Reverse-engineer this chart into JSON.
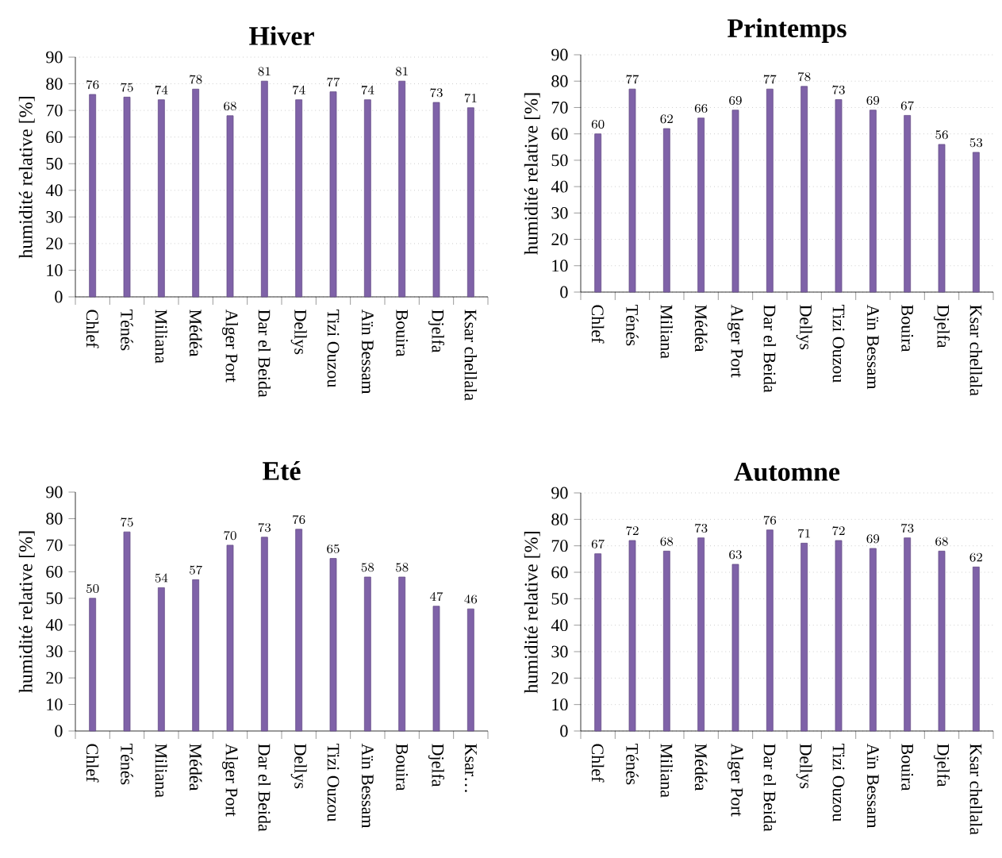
{
  "chart_data": [
    {
      "type": "bar",
      "title": "Hiver",
      "ylabel": "humidité relative [%]",
      "categories": [
        "Chlef",
        "Ténés",
        "Miliana",
        "Médéa",
        "Alger Port",
        "Dar el Beida",
        "Dellys",
        "Tizi Ouzou",
        "Aïn Bessam",
        "Bouira",
        "Djelfa",
        "Ksar chellala"
      ],
      "values": [
        76,
        75,
        74,
        78,
        68,
        81,
        74,
        77,
        74,
        81,
        73,
        71
      ],
      "color": "#7f62a8",
      "ylim": [
        0,
        90
      ],
      "yticks": [
        0,
        10,
        20,
        30,
        40,
        50,
        60,
        70,
        80,
        90
      ],
      "grid": "y",
      "data_labels": true
    },
    {
      "type": "bar",
      "title": "Printemps",
      "ylabel": "humidité relative [%]",
      "categories": [
        "Chlef",
        "Ténés",
        "Miliana",
        "Médéa",
        "Alger Port",
        "Dar el Beida",
        "Dellys",
        "Tizi Ouzou",
        "Aïn Bessam",
        "Bouira",
        "Djelfa",
        "Ksar chellala"
      ],
      "values": [
        60,
        77,
        62,
        66,
        69,
        77,
        78,
        73,
        69,
        67,
        56,
        53
      ],
      "color": "#7f62a8",
      "ylim": [
        0,
        90
      ],
      "yticks": [
        0,
        10,
        20,
        30,
        40,
        50,
        60,
        70,
        80,
        90
      ],
      "grid": "y",
      "data_labels": true
    },
    {
      "type": "bar",
      "title": "Eté",
      "ylabel": "humidité relative [%]",
      "categories": [
        "Chlef",
        "Ténés",
        "Miliana",
        "Médéa",
        "Alger Port",
        "Dar el Beida",
        "Dellys",
        "Tizi Ouzou",
        "Aïn Bessam",
        "Bouira",
        "Djelfa",
        "Ksar…"
      ],
      "values": [
        50,
        75,
        54,
        57,
        70,
        73,
        76,
        65,
        58,
        58,
        47,
        46
      ],
      "color": "#7f62a8",
      "ylim": [
        0,
        90
      ],
      "yticks": [
        0,
        10,
        20,
        30,
        40,
        50,
        60,
        70,
        80,
        90
      ],
      "data_labels": true
    },
    {
      "type": "bar",
      "title": "Automne",
      "ylabel": "humidité relative [%]",
      "categories": [
        "Chlef",
        "Ténés",
        "Miliana",
        "Médéa",
        "Alger Port",
        "Dar el Beida",
        "Dellys",
        "Tizi Ouzou",
        "Aïn Bessam",
        "Bouira",
        "Djelfa",
        "Ksar chellala"
      ],
      "values": [
        67,
        72,
        68,
        73,
        63,
        76,
        71,
        72,
        69,
        73,
        68,
        62
      ],
      "color": "#7f62a8",
      "ylim": [
        0,
        90
      ],
      "yticks": [
        0,
        10,
        20,
        30,
        40,
        50,
        60,
        70,
        80,
        90
      ],
      "grid": "y",
      "data_labels": true
    }
  ]
}
